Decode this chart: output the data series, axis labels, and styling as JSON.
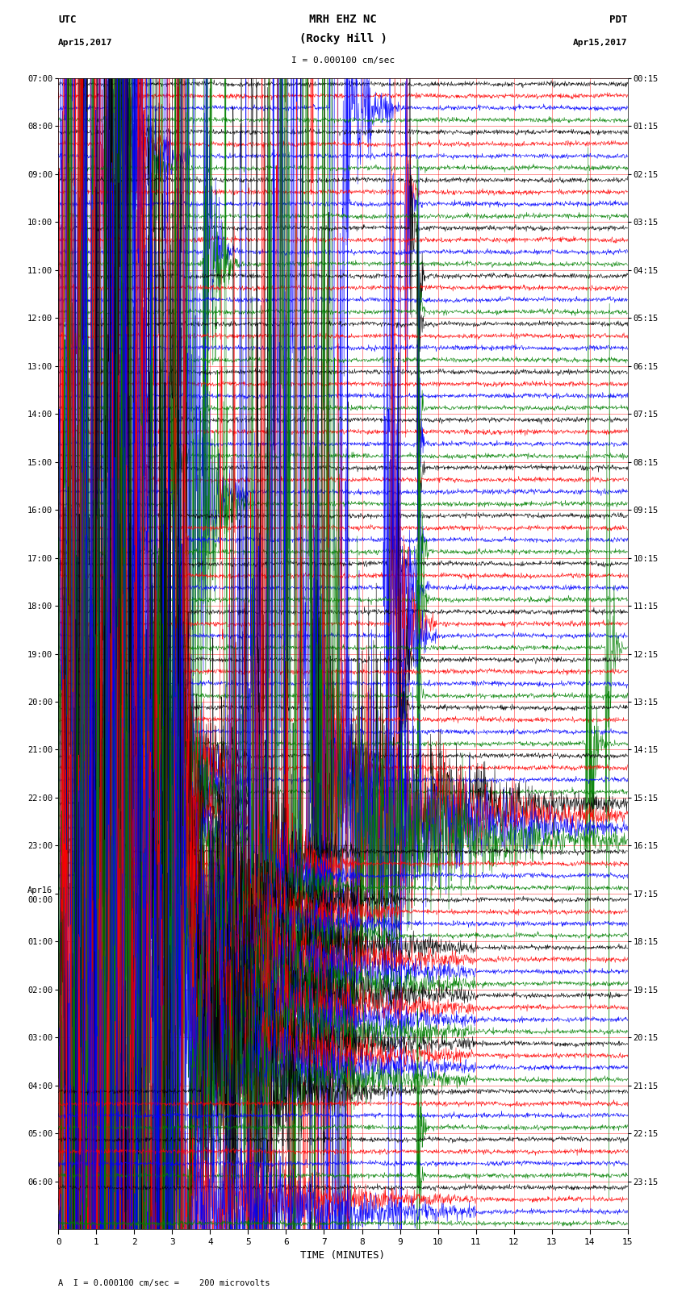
{
  "title_line1": "MRH EHZ NC",
  "title_line2": "(Rocky Hill )",
  "scale_label": "I = 0.000100 cm/sec",
  "footer_label": "A  I = 0.000100 cm/sec =    200 microvolts",
  "utc_label": "UTC",
  "pdt_label": "PDT",
  "date_left": "Apr15,2017",
  "date_right": "Apr15,2017",
  "xlabel": "TIME (MINUTES)",
  "bg_color": "#ffffff",
  "trace_colors": [
    "black",
    "red",
    "blue",
    "green"
  ],
  "left_times": [
    "07:00",
    "08:00",
    "09:00",
    "10:00",
    "11:00",
    "12:00",
    "13:00",
    "14:00",
    "15:00",
    "16:00",
    "17:00",
    "18:00",
    "19:00",
    "20:00",
    "21:00",
    "22:00",
    "23:00",
    "Apr16\n00:00",
    "01:00",
    "02:00",
    "03:00",
    "04:00",
    "05:00",
    "06:00"
  ],
  "right_times": [
    "00:15",
    "01:15",
    "02:15",
    "03:15",
    "04:15",
    "05:15",
    "06:15",
    "07:15",
    "08:15",
    "09:15",
    "10:15",
    "11:15",
    "12:15",
    "13:15",
    "14:15",
    "15:15",
    "16:15",
    "17:15",
    "18:15",
    "19:15",
    "20:15",
    "21:15",
    "22:15",
    "23:15"
  ],
  "n_rows": 24,
  "traces_per_row": 4,
  "minutes": 15,
  "fig_width": 8.5,
  "fig_height": 16.13,
  "dpi": 100,
  "grid_color": "#ff0000",
  "lmargin": 0.085,
  "rmargin": 0.085,
  "tmargin": 0.06,
  "bmargin": 0.055
}
